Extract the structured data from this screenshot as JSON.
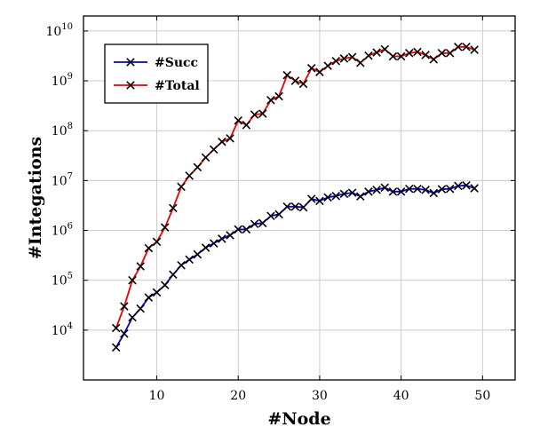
{
  "chart_data": {
    "type": "line",
    "title": "",
    "xlabel": "#Node",
    "ylabel": "#Integations",
    "y_scale": "log",
    "xlim": [
      1,
      54
    ],
    "ylim": [
      1000,
      20000000000
    ],
    "x_ticks": [
      10,
      20,
      30,
      40,
      50
    ],
    "y_ticks": [
      10000,
      100000,
      1000000,
      10000000,
      100000000,
      1000000000,
      10000000000
    ],
    "y_tick_exponents": [
      "4",
      "5",
      "6",
      "7",
      "8",
      "9",
      "10"
    ],
    "y_tick_base": "10",
    "grid": true,
    "legend_position": "top-left",
    "x": [
      5,
      6,
      7,
      8,
      9,
      10,
      11,
      12,
      13,
      14,
      15,
      16,
      17,
      18,
      19,
      20,
      21,
      22,
      23,
      24,
      25,
      26,
      27,
      28,
      29,
      30,
      31,
      32,
      33,
      34,
      35,
      36,
      37,
      38,
      39,
      40,
      41,
      42,
      43,
      44,
      45,
      46,
      47,
      48,
      49
    ],
    "series": [
      {
        "name": "#Succ",
        "color": "#0000cc",
        "marker": "x",
        "values": [
          4500,
          8500,
          18000,
          27000,
          45000,
          57000,
          80000,
          130000,
          200000,
          260000,
          330000,
          450000,
          550000,
          680000,
          800000,
          1050000,
          1050000,
          1350000,
          1400000,
          1950000,
          2100000,
          3000000,
          3000000,
          2900000,
          4300000,
          3900000,
          4600000,
          4900000,
          5400000,
          5700000,
          4800000,
          6000000,
          6500000,
          7200000,
          6000000,
          6000000,
          6800000,
          6800000,
          6500000,
          5600000,
          6700000,
          6800000,
          7800000,
          8000000,
          7000000
        ]
      },
      {
        "name": "#Total",
        "color": "#ee0000",
        "marker": "x",
        "values": [
          11000,
          30000,
          100000,
          190000,
          440000,
          590000,
          1150000,
          2800000,
          7500000,
          12500000,
          18500000,
          29000000,
          42000000,
          60000000,
          70000000,
          160000000,
          130000000,
          210000000,
          220000000,
          410000000,
          490000000,
          1300000000,
          1000000000,
          870000000,
          1800000000,
          1500000000,
          2000000000,
          2500000000,
          2800000000,
          3000000000,
          2300000000,
          3200000000,
          3700000000,
          4300000000,
          3100000000,
          3100000000,
          3600000000,
          3800000000,
          3300000000,
          2700000000,
          3600000000,
          3600000000,
          4800000000,
          4800000000,
          4200000000
        ]
      }
    ]
  }
}
